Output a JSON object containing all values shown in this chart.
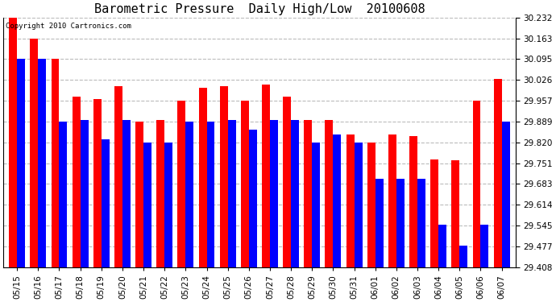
{
  "title": "Barometric Pressure  Daily High/Low  20100608",
  "copyright": "Copyright 2010 Cartronics.com",
  "yticks": [
    29.408,
    29.477,
    29.545,
    29.614,
    29.683,
    29.751,
    29.82,
    29.889,
    29.957,
    30.026,
    30.095,
    30.163,
    30.232
  ],
  "ylim": [
    29.408,
    30.232
  ],
  "dates": [
    "05/15",
    "05/16",
    "05/17",
    "05/18",
    "05/19",
    "05/20",
    "05/21",
    "05/22",
    "05/23",
    "05/24",
    "05/25",
    "05/26",
    "05/27",
    "05/28",
    "05/29",
    "05/30",
    "05/31",
    "06/01",
    "06/02",
    "06/03",
    "06/04",
    "06/05",
    "06/06",
    "06/07"
  ],
  "highs": [
    30.232,
    30.163,
    30.095,
    29.97,
    29.964,
    30.005,
    29.889,
    29.895,
    29.957,
    30.0,
    30.005,
    29.957,
    30.01,
    29.97,
    29.895,
    29.895,
    29.845,
    29.82,
    29.845,
    29.84,
    29.765,
    29.76,
    29.957,
    30.03
  ],
  "lows": [
    30.095,
    30.095,
    29.889,
    29.895,
    29.83,
    29.895,
    29.82,
    29.82,
    29.889,
    29.889,
    29.895,
    29.862,
    29.895,
    29.895,
    29.82,
    29.845,
    29.82,
    29.7,
    29.7,
    29.7,
    29.548,
    29.48,
    29.548,
    29.889
  ],
  "high_color": "#ff0000",
  "low_color": "#0000ff",
  "bg_color": "#ffffff",
  "bar_width": 0.38,
  "grid_color": "#bbbbbb",
  "title_fontsize": 11,
  "tick_fontsize": 7.5
}
